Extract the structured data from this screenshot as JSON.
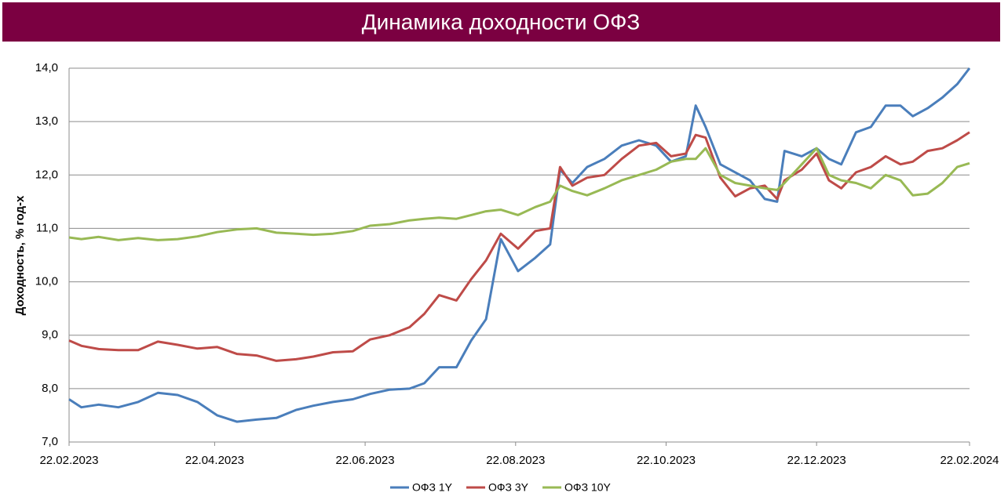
{
  "chart_data": {
    "type": "line",
    "title": "Динамика доходности ОФЗ",
    "y_label": "Доходность, % год-х",
    "x": [
      "22.02.2023",
      "27.02.2023",
      "06.03.2023",
      "14.03.2023",
      "22.03.2023",
      "30.03.2023",
      "07.04.2023",
      "15.04.2023",
      "23.04.2023",
      "01.05.2023",
      "09.05.2023",
      "17.05.2023",
      "25.05.2023",
      "01.06.2023",
      "09.06.2023",
      "17.06.2023",
      "24.06.2023",
      "02.07.2023",
      "10.07.2023",
      "16.07.2023",
      "22.07.2023",
      "29.07.2023",
      "04.08.2023",
      "10.08.2023",
      "16.08.2023",
      "23.08.2023",
      "30.08.2023",
      "05.09.2023",
      "09.09.2023",
      "14.09.2023",
      "20.09.2023",
      "27.09.2023",
      "04.10.2023",
      "11.10.2023",
      "18.10.2023",
      "24.10.2023",
      "30.10.2023",
      "03.11.2023",
      "07.11.2023",
      "13.11.2023",
      "19.11.2023",
      "25.11.2023",
      "01.12.2023",
      "06.12.2023",
      "09.12.2023",
      "16.12.2023",
      "22.12.2023",
      "27.12.2023",
      "01.01.2024",
      "07.01.2024",
      "13.01.2024",
      "19.01.2024",
      "25.01.2024",
      "30.01.2024",
      "05.02.2024",
      "11.02.2024",
      "17.02.2024",
      "22.02.2024"
    ],
    "series": [
      {
        "name": "ОФЗ 1Y",
        "color": "#4a7ebb",
        "values": [
          7.8,
          7.65,
          7.7,
          7.65,
          7.75,
          7.92,
          7.88,
          7.75,
          7.5,
          7.38,
          7.42,
          7.45,
          7.6,
          7.68,
          7.75,
          7.8,
          7.9,
          7.98,
          8.0,
          8.1,
          8.4,
          8.4,
          8.9,
          9.3,
          10.8,
          10.2,
          10.45,
          10.7,
          12.1,
          11.85,
          12.15,
          12.3,
          12.55,
          12.65,
          12.55,
          12.25,
          12.35,
          13.3,
          12.9,
          12.2,
          12.05,
          11.9,
          11.55,
          11.5,
          12.45,
          12.35,
          12.5,
          12.3,
          12.2,
          12.8,
          12.9,
          13.3,
          13.3,
          13.1,
          13.25,
          13.45,
          13.7,
          14.0
        ]
      },
      {
        "name": "ОФЗ 3Y",
        "color": "#be4b48",
        "values": [
          8.9,
          8.8,
          8.74,
          8.72,
          8.72,
          8.88,
          8.82,
          8.75,
          8.78,
          8.65,
          8.62,
          8.52,
          8.55,
          8.6,
          8.68,
          8.7,
          8.92,
          9.0,
          9.15,
          9.4,
          9.75,
          9.65,
          10.05,
          10.4,
          10.9,
          10.62,
          10.95,
          11.0,
          12.15,
          11.8,
          11.95,
          12.0,
          12.3,
          12.55,
          12.6,
          12.35,
          12.4,
          12.75,
          12.7,
          11.95,
          11.6,
          11.75,
          11.8,
          11.55,
          11.9,
          12.1,
          12.4,
          11.9,
          11.75,
          12.05,
          12.15,
          12.35,
          12.2,
          12.25,
          12.45,
          12.5,
          12.65,
          12.8
        ]
      },
      {
        "name": "ОФЗ 10Y",
        "color": "#98b954",
        "values": [
          10.83,
          10.8,
          10.84,
          10.78,
          10.82,
          10.78,
          10.8,
          10.85,
          10.93,
          10.98,
          11.0,
          10.92,
          10.9,
          10.88,
          10.9,
          10.95,
          11.05,
          11.08,
          11.15,
          11.18,
          11.2,
          11.18,
          11.25,
          11.32,
          11.35,
          11.25,
          11.4,
          11.5,
          11.8,
          11.7,
          11.62,
          11.75,
          11.9,
          12.0,
          12.1,
          12.25,
          12.3,
          12.3,
          12.5,
          12.0,
          11.85,
          11.8,
          11.75,
          11.72,
          11.85,
          12.2,
          12.5,
          12.0,
          11.9,
          11.85,
          11.75,
          12.0,
          11.9,
          11.62,
          11.65,
          11.85,
          12.15,
          12.22
        ]
      }
    ],
    "xlim": [
      "22.02.2023",
      "22.02.2024"
    ],
    "xticks": [
      "22.02.2023",
      "22.04.2023",
      "22.06.2023",
      "22.08.2023",
      "22.10.2023",
      "22.12.2023",
      "22.02.2024"
    ],
    "ylim": [
      7,
      14
    ],
    "yticks": [
      {
        "value": 7,
        "label": "7,0"
      },
      {
        "value": 8,
        "label": "8,0"
      },
      {
        "value": 9,
        "label": "9,0"
      },
      {
        "value": 10,
        "label": "10,0"
      },
      {
        "value": 11,
        "label": "11,0"
      },
      {
        "value": 12,
        "label": "12,0"
      },
      {
        "value": 13,
        "label": "13,0"
      },
      {
        "value": 14,
        "label": "14,0"
      }
    ],
    "grid": true,
    "legend": "bottom"
  }
}
